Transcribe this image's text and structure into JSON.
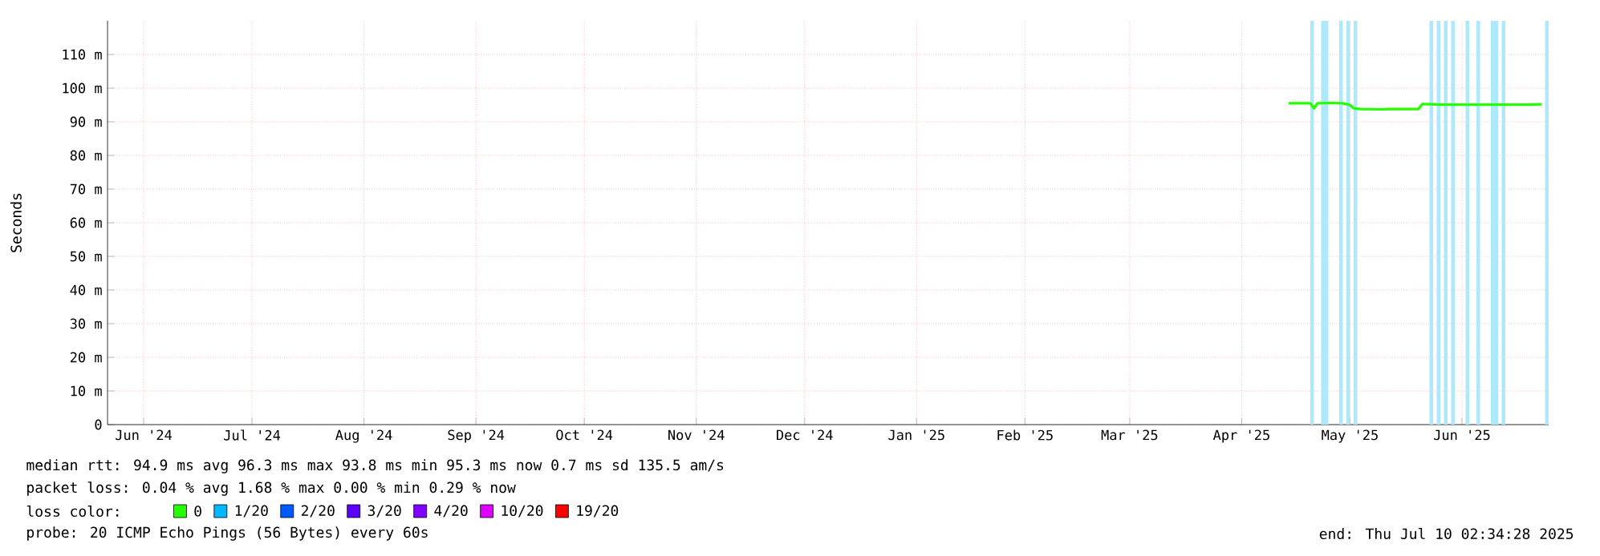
{
  "chart_data": {
    "type": "line",
    "ylabel": "Seconds",
    "x": [
      "2025-04-29",
      "2025-05-02",
      "2025-05-05",
      "2025-05-06",
      "2025-05-07",
      "2025-05-10",
      "2025-05-14",
      "2025-05-16",
      "2025-05-17",
      "2025-05-19",
      "2025-05-24",
      "2025-05-28",
      "2025-06-02",
      "2025-06-04",
      "2025-06-05",
      "2025-06-10",
      "2025-06-17",
      "2025-06-24",
      "2025-06-30",
      "2025-07-05",
      "2025-07-08"
    ],
    "series": [
      {
        "name": "0",
        "color": "#26ff00",
        "values": [
          95.5,
          95.5,
          95.5,
          94.0,
          95.5,
          95.6,
          95.5,
          95.0,
          94.0,
          93.8,
          93.7,
          93.8,
          93.8,
          93.8,
          95.3,
          95.1,
          95.1,
          95.1,
          95.1,
          95.1,
          95.2
        ]
      },
      {
        "name": "1/20",
        "color": "#00b8ff",
        "values": [
          null,
          null,
          null,
          null,
          null,
          null,
          null,
          null,
          null,
          null,
          null,
          null,
          null,
          null,
          null,
          null,
          null,
          null,
          null,
          null,
          null
        ]
      },
      {
        "name": "2/20",
        "color": "#0059ff",
        "values": [
          null,
          null,
          null,
          null,
          null,
          null,
          null,
          null,
          null,
          null,
          null,
          null,
          null,
          null,
          null,
          null,
          null,
          null,
          null,
          null,
          null
        ]
      },
      {
        "name": "3/20",
        "color": "#5e00ff",
        "values": [
          null,
          null,
          null,
          null,
          null,
          null,
          null,
          null,
          null,
          null,
          null,
          null,
          null,
          null,
          null,
          null,
          null,
          null,
          null,
          null,
          null
        ]
      },
      {
        "name": "4/20",
        "color": "#7e00ff",
        "values": [
          null,
          null,
          null,
          null,
          null,
          null,
          null,
          null,
          null,
          null,
          null,
          null,
          null,
          null,
          null,
          null,
          null,
          null,
          null,
          null,
          null
        ]
      },
      {
        "name": "10/20",
        "color": "#dd00ff",
        "values": [
          null,
          null,
          null,
          null,
          null,
          null,
          null,
          null,
          null,
          null,
          null,
          null,
          null,
          null,
          null,
          null,
          null,
          null,
          null,
          null,
          null
        ]
      },
      {
        "name": "19/20",
        "color": "#ff0000",
        "values": [
          null,
          null,
          null,
          null,
          null,
          null,
          null,
          null,
          null,
          null,
          null,
          null,
          null,
          null,
          null,
          null,
          null,
          null,
          null,
          null,
          null
        ]
      }
    ],
    "xlim": [
      "2024-06-06",
      "2025-07-10"
    ],
    "xticks": [
      {
        "value": "2024-06-16",
        "label": "Jun '24"
      },
      {
        "value": "2024-07-16",
        "label": "Jul '24"
      },
      {
        "value": "2024-08-16",
        "label": "Aug '24"
      },
      {
        "value": "2024-09-16",
        "label": "Sep '24"
      },
      {
        "value": "2024-10-16",
        "label": "Oct '24"
      },
      {
        "value": "2024-11-16",
        "label": "Nov '24"
      },
      {
        "value": "2024-12-16",
        "label": "Dec '24"
      },
      {
        "value": "2025-01-16",
        "label": "Jan '25"
      },
      {
        "value": "2025-02-15",
        "label": "Feb '25"
      },
      {
        "value": "2025-03-16",
        "label": "Mar '25"
      },
      {
        "value": "2025-04-16",
        "label": "Apr '25"
      },
      {
        "value": "2025-05-16",
        "label": "May '25"
      },
      {
        "value": "2025-06-16",
        "label": "Jun '25"
      }
    ],
    "ylim": [
      0,
      120
    ],
    "yticks": [
      0,
      {
        "value": 10,
        "label": "10 m"
      },
      {
        "value": 20,
        "label": "20 m"
      },
      {
        "value": 30,
        "label": "30 m"
      },
      {
        "value": 40,
        "label": "40 m"
      },
      {
        "value": 50,
        "label": "50 m"
      },
      {
        "value": 60,
        "label": "60 m"
      },
      {
        "value": 70,
        "label": "70 m"
      },
      {
        "value": 80,
        "label": "80 m"
      },
      {
        "value": 90,
        "label": "90 m"
      },
      {
        "value": 100,
        "label": "100 m"
      },
      {
        "value": 110,
        "label": "110 m"
      }
    ],
    "bands": [
      {
        "axis": "x",
        "from": "2025-05-05",
        "to": "2025-05-06",
        "color": "#aee8fb"
      },
      {
        "axis": "x",
        "from": "2025-05-08",
        "to": "2025-05-10",
        "color": "#aee8fb"
      },
      {
        "axis": "x",
        "from": "2025-05-13",
        "to": "2025-05-14",
        "color": "#aee8fb"
      },
      {
        "axis": "x",
        "from": "2025-05-15",
        "to": "2025-05-16",
        "color": "#aee8fb"
      },
      {
        "axis": "x",
        "from": "2025-05-17",
        "to": "2025-05-18",
        "color": "#aee8fb"
      },
      {
        "axis": "x",
        "from": "2025-06-07",
        "to": "2025-06-08",
        "color": "#aee8fb"
      },
      {
        "axis": "x",
        "from": "2025-06-09",
        "to": "2025-06-10",
        "color": "#aee8fb"
      },
      {
        "axis": "x",
        "from": "2025-06-11",
        "to": "2025-06-12",
        "color": "#aee8fb"
      },
      {
        "axis": "x",
        "from": "2025-06-13",
        "to": "2025-06-14",
        "color": "#aee8fb"
      },
      {
        "axis": "x",
        "from": "2025-06-17",
        "to": "2025-06-18",
        "color": "#aee8fb"
      },
      {
        "axis": "x",
        "from": "2025-06-20",
        "to": "2025-06-21",
        "color": "#aee8fb"
      },
      {
        "axis": "x",
        "from": "2025-06-24",
        "to": "2025-06-26",
        "color": "#aee8fb"
      },
      {
        "axis": "x",
        "from": "2025-06-27",
        "to": "2025-06-28",
        "color": "#aee8fb"
      },
      {
        "axis": "x",
        "from": "2025-07-09",
        "to": "2025-07-10",
        "color": "#aee8fb"
      }
    ],
    "grid": true,
    "legend": "bottom",
    "legend_title": "loss color:",
    "annotations": [
      "median rtt:  94.9 ms avg  96.3 ms max  93.8 ms min  95.3 ms now  0.7 ms sd  135.5   am/s",
      "packet loss: 0.04 % avg  1.68 % max  0.00 % min  0.29 % now",
      "probe:       20 ICMP Echo Pings (56 Bytes) every 60s",
      "end: Thu Jul 10 02:34:28 2025"
    ]
  }
}
